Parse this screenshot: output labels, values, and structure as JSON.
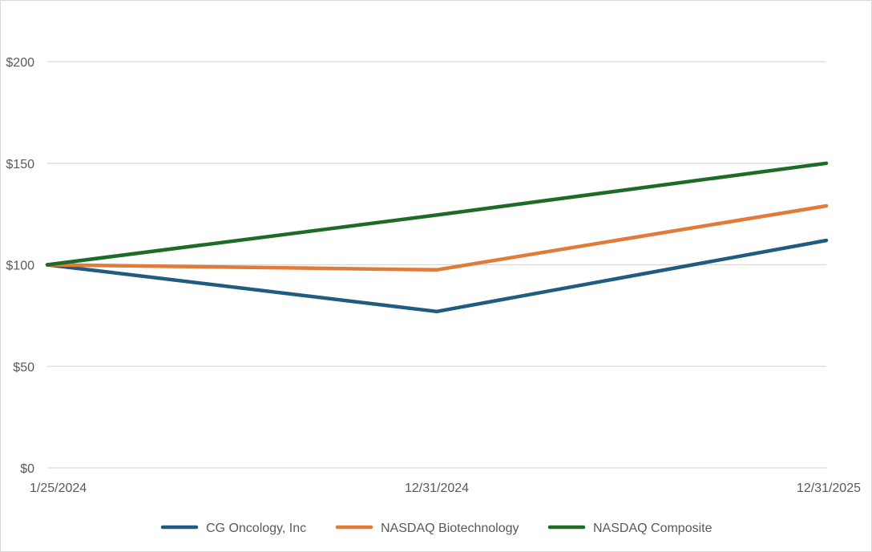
{
  "chart_data": {
    "type": "line",
    "title": "",
    "xlabel": "",
    "ylabel": "",
    "categories": [
      "1/25/2024",
      "12/31/2024",
      "12/31/2025"
    ],
    "ylim": [
      0,
      200
    ],
    "yticks": [
      0,
      50,
      100,
      150,
      200
    ],
    "ytick_labels": [
      "$0",
      "$50",
      "$100",
      "$150",
      "$200"
    ],
    "grid": true,
    "legend_position": "bottom",
    "series": [
      {
        "name": "CG Oncology, Inc",
        "color": "#1f5c7f",
        "values": [
          100,
          77,
          112
        ]
      },
      {
        "name": "NASDAQ Biotechnology",
        "color": "#e07b39",
        "values": [
          100,
          97.5,
          129
        ]
      },
      {
        "name": "NASDAQ Composite",
        "color": "#1e6b27",
        "values": [
          100,
          124.5,
          150
        ]
      }
    ]
  }
}
